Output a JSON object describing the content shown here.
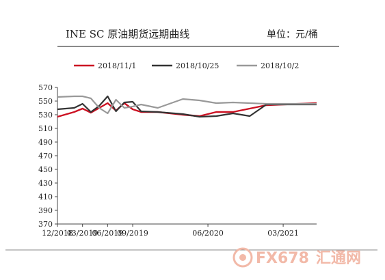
{
  "header": {
    "title": "INE SC 原油期货远期曲线",
    "unit": "单位：元/桶"
  },
  "watermark": {
    "text_a": "FX678",
    "text_b": "汇通网",
    "color": "#f2b9a8"
  },
  "chart_data": {
    "type": "line",
    "x": [
      "2018-12",
      "2019-01",
      "2019-02",
      "2019-03",
      "2019-04",
      "2019-05",
      "2019-06",
      "2019-07",
      "2019-08",
      "2019-09",
      "2019-10",
      "2019-11",
      "2019-12",
      "2020-01",
      "2020-02",
      "2020-03",
      "2020-04",
      "2020-05",
      "2020-06",
      "2020-07",
      "2020-08",
      "2020-09",
      "2020-10",
      "2020-11",
      "2020-12",
      "2021-01",
      "2021-02",
      "2021-03",
      "2021-04",
      "2021-05",
      "2021-06",
      "2021-07"
    ],
    "x_tick_labels": [
      "12/2018",
      "03/2019",
      "06/2019",
      "09/2019",
      "06/2020",
      "03/2021"
    ],
    "x_tick_values": [
      "2018-12",
      "2019-03",
      "2019-06",
      "2019-09",
      "2020-06",
      "2021-03"
    ],
    "y_ticks": [
      370,
      390,
      410,
      430,
      450,
      470,
      490,
      510,
      530,
      550,
      570
    ],
    "ylim": [
      370,
      570
    ],
    "grid": false,
    "legend_position": "top",
    "series": [
      {
        "name": "2018/11/1",
        "color": "#cc1122",
        "width": 2.4,
        "points": [
          [
            "2018-12",
            527
          ],
          [
            "2019-02",
            534
          ],
          [
            "2019-03",
            539
          ],
          [
            "2019-04",
            533
          ],
          [
            "2019-06",
            547
          ],
          [
            "2019-07",
            536
          ],
          [
            "2019-08",
            547
          ],
          [
            "2019-09",
            538
          ],
          [
            "2019-10",
            534
          ],
          [
            "2019-12",
            534
          ],
          [
            "2020-03",
            530
          ],
          [
            "2020-05",
            528
          ],
          [
            "2020-07",
            534
          ],
          [
            "2020-09",
            534
          ],
          [
            "2021-01",
            544
          ],
          [
            "2021-07",
            547
          ]
        ]
      },
      {
        "name": "2018/10/25",
        "color": "#333333",
        "width": 2.2,
        "points": [
          [
            "2018-12",
            538
          ],
          [
            "2019-02",
            540
          ],
          [
            "2019-03",
            546
          ],
          [
            "2019-04",
            534
          ],
          [
            "2019-05",
            543
          ],
          [
            "2019-06",
            557
          ],
          [
            "2019-07",
            535
          ],
          [
            "2019-08",
            548
          ],
          [
            "2019-09",
            549
          ],
          [
            "2019-10",
            535
          ],
          [
            "2019-12",
            534
          ],
          [
            "2020-03",
            531
          ],
          [
            "2020-05",
            527
          ],
          [
            "2020-07",
            528
          ],
          [
            "2020-09",
            532
          ],
          [
            "2020-11",
            528
          ],
          [
            "2021-01",
            545
          ],
          [
            "2021-07",
            545
          ]
        ]
      },
      {
        "name": "2018/10/2",
        "color": "#999999",
        "width": 2.2,
        "points": [
          [
            "2018-12",
            556
          ],
          [
            "2019-02",
            557
          ],
          [
            "2019-03",
            557
          ],
          [
            "2019-04",
            554
          ],
          [
            "2019-05",
            540
          ],
          [
            "2019-06",
            532
          ],
          [
            "2019-07",
            552
          ],
          [
            "2019-08",
            540
          ],
          [
            "2019-09",
            542
          ],
          [
            "2019-10",
            545
          ],
          [
            "2019-12",
            540
          ],
          [
            "2020-03",
            553
          ],
          [
            "2020-05",
            551
          ],
          [
            "2020-07",
            547
          ],
          [
            "2020-09",
            548
          ],
          [
            "2020-11",
            547
          ],
          [
            "2021-01",
            546
          ],
          [
            "2021-07",
            546
          ]
        ]
      }
    ]
  }
}
